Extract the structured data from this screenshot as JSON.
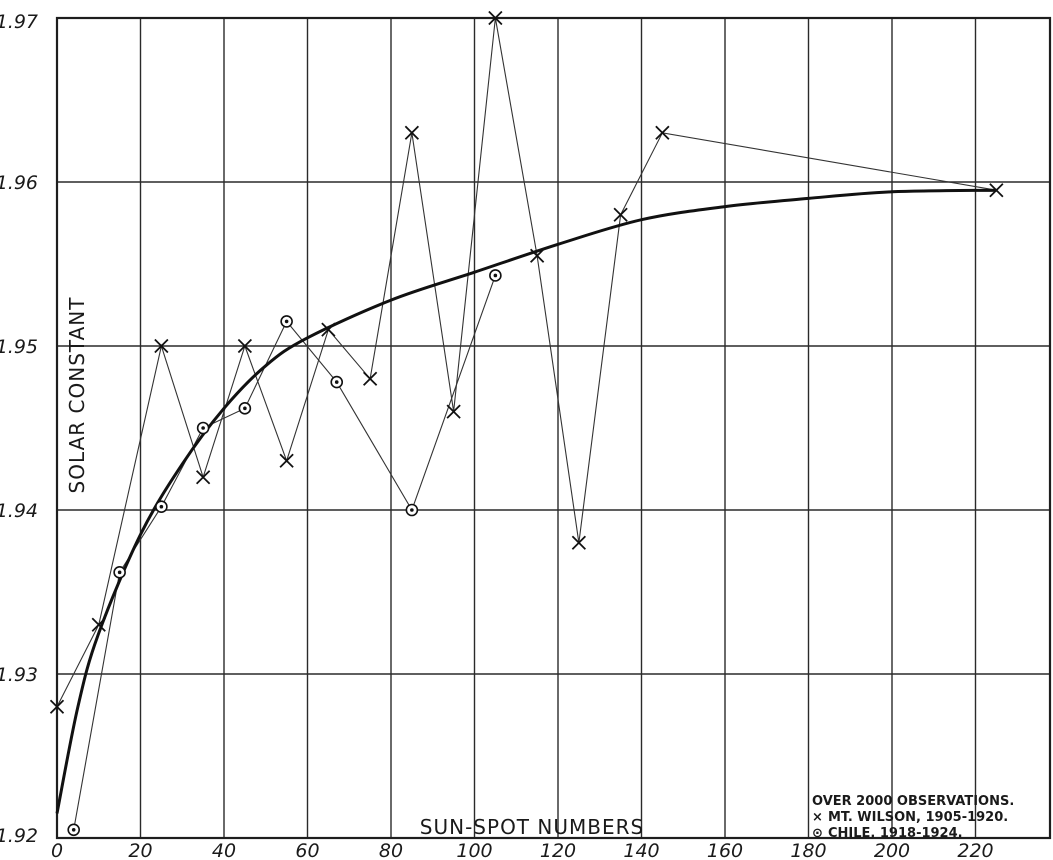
{
  "chart_data": {
    "type": "line",
    "title": "",
    "xlabel": "SUN-SPOT NUMBERS",
    "ylabel": "SOLAR CONSTANT",
    "xlim": [
      0,
      240
    ],
    "ylim": [
      1.92,
      1.97
    ],
    "x_ticks": [
      0,
      20,
      40,
      60,
      80,
      100,
      120,
      140,
      160,
      180,
      200,
      220
    ],
    "x_tick_labels": [
      "0",
      "20",
      "40",
      "60",
      "80",
      "100",
      "120",
      "140",
      "160",
      "180",
      "200",
      "220"
    ],
    "y_ticks": [
      1.92,
      1.93,
      1.94,
      1.95,
      1.96,
      1.97
    ],
    "y_tick_labels": [
      "1.92",
      "1.93",
      "1.94",
      "1.95",
      "1.96",
      "1.97"
    ],
    "grid": true,
    "legend": {
      "placement": "bottom-right",
      "header": "OVER 2000 OBSERVATIONS.",
      "entries": [
        {
          "marker": "×",
          "text": "MT. WILSON, 1905-1920."
        },
        {
          "marker": "⊙",
          "text": "CHILE, 1918-1924."
        }
      ]
    },
    "series": [
      {
        "name": "MT. WILSON, 1905-1920.",
        "marker": "cross",
        "points": [
          {
            "x": 0,
            "y": 1.928
          },
          {
            "x": 10,
            "y": 1.933
          },
          {
            "x": 25,
            "y": 1.95
          },
          {
            "x": 35,
            "y": 1.942
          },
          {
            "x": 45,
            "y": 1.95
          },
          {
            "x": 55,
            "y": 1.943
          },
          {
            "x": 65,
            "y": 1.951
          },
          {
            "x": 75,
            "y": 1.948
          },
          {
            "x": 85,
            "y": 1.963
          },
          {
            "x": 95,
            "y": 1.946
          },
          {
            "x": 105,
            "y": 1.97
          },
          {
            "x": 115,
            "y": 1.9555
          },
          {
            "x": 125,
            "y": 1.938
          },
          {
            "x": 135,
            "y": 1.958
          },
          {
            "x": 145,
            "y": 1.963
          },
          {
            "x": 225,
            "y": 1.9595
          }
        ]
      },
      {
        "name": "CHILE, 1918-1924.",
        "marker": "circle",
        "points": [
          {
            "x": 4,
            "y": 1.9205
          },
          {
            "x": 15,
            "y": 1.9362
          },
          {
            "x": 25,
            "y": 1.9402
          },
          {
            "x": 35,
            "y": 1.945
          },
          {
            "x": 45,
            "y": 1.9462
          },
          {
            "x": 55,
            "y": 1.9515
          },
          {
            "x": 67,
            "y": 1.9478
          },
          {
            "x": 85,
            "y": 1.94
          },
          {
            "x": 105,
            "y": 1.9543
          }
        ]
      },
      {
        "name": "",
        "marker": "none",
        "style": "smooth-curve",
        "points": [
          {
            "x": 0,
            "y": 1.9215
          },
          {
            "x": 5,
            "y": 1.928
          },
          {
            "x": 10,
            "y": 1.9325
          },
          {
            "x": 20,
            "y": 1.9385
          },
          {
            "x": 30,
            "y": 1.9428
          },
          {
            "x": 40,
            "y": 1.9462
          },
          {
            "x": 50,
            "y": 1.9488
          },
          {
            "x": 60,
            "y": 1.9505
          },
          {
            "x": 80,
            "y": 1.9528
          },
          {
            "x": 100,
            "y": 1.9545
          },
          {
            "x": 120,
            "y": 1.9562
          },
          {
            "x": 140,
            "y": 1.9577
          },
          {
            "x": 160,
            "y": 1.9585
          },
          {
            "x": 180,
            "y": 1.959
          },
          {
            "x": 200,
            "y": 1.9594
          },
          {
            "x": 225,
            "y": 1.9595
          }
        ]
      }
    ]
  }
}
